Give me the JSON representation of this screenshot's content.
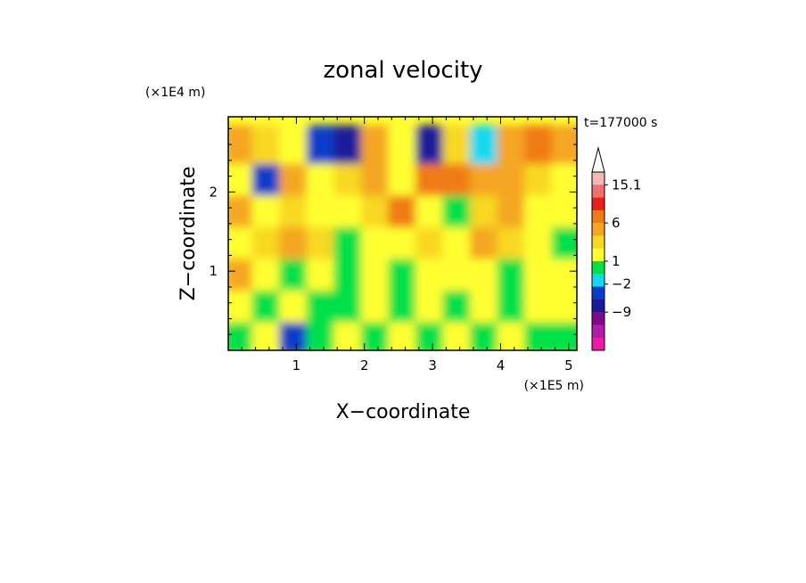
{
  "chart_data": {
    "type": "heatmap",
    "title": "zonal velocity",
    "xlabel": "X−coordinate",
    "ylabel": "Z−coordinate",
    "x_unit": "(×1E5 m)",
    "y_unit": "(×1E4 m)",
    "time_label": "t=177000 s",
    "xlim": [
      0,
      5.12
    ],
    "ylim": [
      0,
      2.95
    ],
    "x_ticks": [
      "1",
      "2",
      "3",
      "4",
      "5"
    ],
    "y_ticks": [
      "1",
      "2"
    ],
    "colorbar": {
      "labels": [
        "15.1",
        "6",
        "1",
        "−2",
        "−9"
      ],
      "colors": [
        "#f4b8b8",
        "#f07070",
        "#e8201a",
        "#f07a18",
        "#f5a623",
        "#f8d820",
        "#ffff33",
        "#00e04a",
        "#15d8f0",
        "#0a3ec8",
        "#1a1a9a",
        "#7a0c8c",
        "#b21aa8",
        "#ee1aa6"
      ],
      "extend_max_color": "#ffffff"
    },
    "field": {
      "x": [
        0.2,
        0.6,
        1.0,
        1.4,
        1.8,
        2.2,
        2.6,
        3.0,
        3.4,
        3.8,
        4.2,
        4.6,
        5.0
      ],
      "z": [
        0.2,
        0.6,
        1.0,
        1.4,
        1.8,
        2.2,
        2.6
      ],
      "values": [
        [
          0,
          1,
          -3,
          0,
          1,
          0,
          1,
          0,
          1,
          0,
          1,
          0,
          0
        ],
        [
          1,
          0,
          1,
          0,
          0,
          1,
          0,
          1,
          0,
          1,
          0,
          1,
          1
        ],
        [
          3,
          1,
          0,
          1,
          0,
          1,
          0,
          1,
          1,
          1,
          0,
          1,
          1
        ],
        [
          1,
          2,
          3,
          2,
          -1,
          1,
          1,
          2,
          1,
          3,
          2,
          1,
          0
        ],
        [
          3,
          1,
          2,
          1,
          1,
          2,
          5,
          1,
          -1,
          2,
          3,
          1,
          1
        ],
        [
          1,
          -4,
          3,
          1,
          2,
          3,
          1,
          6,
          5,
          4,
          3,
          2,
          1
        ],
        [
          3,
          2,
          1,
          -3,
          -6,
          3,
          1,
          -7,
          2,
          -2,
          4,
          6,
          4
        ]
      ]
    }
  }
}
